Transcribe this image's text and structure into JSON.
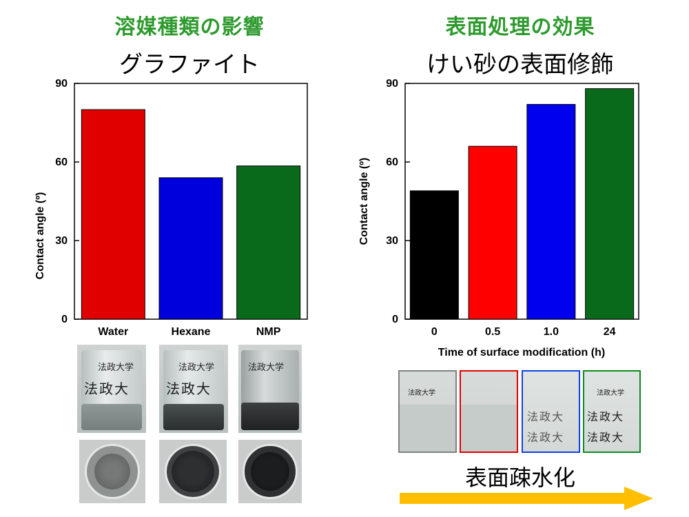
{
  "left_panel": {
    "heading": "溶媒種類の影響",
    "subtitle": "グラファイト"
  },
  "right_panel": {
    "heading": "表面処理の効果",
    "subtitle": "けい砂の表面修飾",
    "arrow_label": "表面疎水化"
  },
  "photo_text": {
    "label": "法政大学",
    "big1": "法政大",
    "big2": "法政大"
  },
  "colors": {
    "heading": "#2e9a2e",
    "red": "#e00000",
    "blue": "#0000dd",
    "green": "#0a6a1c",
    "black": "#000000",
    "arrow": "#ffbf00"
  },
  "chart_data": [
    {
      "type": "bar",
      "title": "グラファイト",
      "categories": [
        "Water",
        "Hexane",
        "NMP"
      ],
      "values": [
        80,
        54,
        58.5
      ],
      "colors": [
        "#e00000",
        "#0000dd",
        "#0a6a1c"
      ],
      "xlabel": "",
      "ylabel": "Contact angle  (º)",
      "ylim": [
        0,
        90
      ],
      "yticks": [
        "0",
        "30",
        "60",
        "90"
      ],
      "grid": false
    },
    {
      "type": "bar",
      "title": "けい砂の表面修飾",
      "categories": [
        "0",
        "0.5",
        "1.0",
        "24"
      ],
      "values": [
        49,
        66,
        82,
        88
      ],
      "colors": [
        "#000000",
        "#ff0000",
        "#0000ee",
        "#0a6a1c"
      ],
      "xlabel": "Time of surface modification  (h)",
      "ylabel": "Contact angle  (º)",
      "ylim": [
        0,
        90
      ],
      "yticks": [
        "0",
        "30",
        "60",
        "90"
      ],
      "grid": false
    }
  ]
}
